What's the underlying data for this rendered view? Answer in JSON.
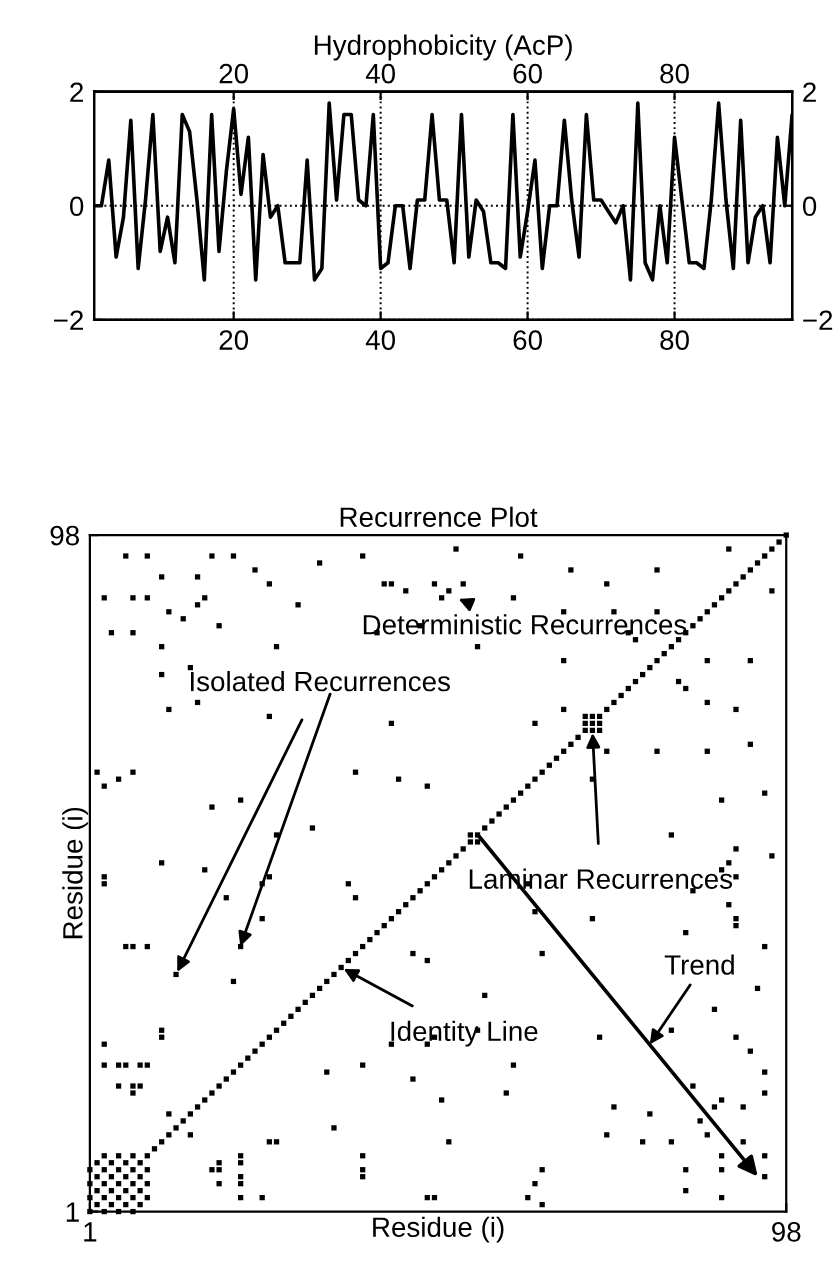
{
  "chart_data": [
    {
      "type": "line",
      "title": "Hydrophobicity (AcP)",
      "series": [
        {
          "color": "#000000",
          "x": [
            1,
            2,
            3,
            4,
            5,
            6,
            7,
            8,
            9,
            10,
            11,
            12,
            13,
            14,
            15,
            16,
            17,
            18,
            19,
            20,
            21,
            22,
            23,
            24,
            25,
            26,
            27,
            28,
            29,
            30,
            31,
            32,
            33,
            34,
            35,
            36,
            37,
            38,
            39,
            40,
            41,
            42,
            43,
            44,
            45,
            46,
            47,
            48,
            49,
            50,
            51,
            52,
            53,
            54,
            55,
            56,
            57,
            58,
            59,
            60,
            61,
            62,
            63,
            64,
            65,
            66,
            67,
            68,
            69,
            70,
            71,
            72,
            73,
            74,
            75,
            76,
            77,
            78,
            79,
            80,
            81,
            82,
            83,
            84,
            85,
            86,
            87,
            88,
            89,
            90,
            91,
            92,
            93,
            94,
            95,
            96
          ],
          "values": [
            0,
            0,
            0.8,
            -0.9,
            -0.2,
            1.5,
            -1.1,
            0.1,
            1.6,
            -0.8,
            -0.2,
            -1,
            1.6,
            1.3,
            0.1,
            -1.3,
            1.6,
            -0.8,
            0.6,
            1.7,
            0.2,
            1.2,
            -1.3,
            0.9,
            -0.2,
            0,
            -1,
            -1,
            -1,
            0.8,
            -1.3,
            -1.1,
            1.8,
            0.1,
            1.6,
            1.6,
            0.1,
            0,
            1.6,
            -1.1,
            -1,
            0,
            0,
            -1.1,
            0.1,
            0.1,
            1.6,
            0.1,
            0.1,
            -1,
            1.6,
            -0.9,
            0.1,
            -0.1,
            -1,
            -1,
            -1.1,
            1.6,
            -0.9,
            -0.1,
            0.8,
            -1.1,
            0,
            0,
            1.5,
            0.1,
            -0.9,
            1.6,
            0.1,
            0.1,
            -0.1,
            -0.3,
            0,
            -1.3,
            1.8,
            -1,
            -1.3,
            0,
            -1,
            1.2,
            0.1,
            -1,
            -1,
            -1.1,
            0.1,
            1.8,
            0.1,
            -1.1,
            1.5,
            -1,
            -0.2,
            0,
            -1,
            1.2,
            0,
            1.6
          ]
        }
      ],
      "xlim": [
        1,
        96
      ],
      "xticks": [
        20,
        40,
        60,
        80
      ],
      "x2lim": [
        1,
        96
      ],
      "x2ticks": [
        20,
        40,
        60,
        80
      ],
      "ylim": [
        -2,
        2
      ],
      "yticks": [
        {
          "value": -2,
          "label": "−2"
        },
        0,
        2
      ],
      "y2lim": [
        -2,
        2
      ],
      "y2ticks": [
        {
          "value": -2,
          "label": "−2"
        },
        0,
        2
      ],
      "grid": true
    },
    {
      "type": "scatter",
      "title": "Recurrence Plot",
      "xlabel": "Residue (i)",
      "ylabel": "Residue (i)",
      "marker": "square",
      "series": [
        {
          "color": "#000000",
          "x": [
            6,
            9,
            18,
            21,
            24,
            26,
            11,
            16,
            3,
            7,
            9,
            12,
            14,
            16,
            17,
            19,
            4,
            7,
            11,
            27,
            30,
            33,
            39,
            42,
            43,
            45,
            47,
            41,
            11,
            15,
            12,
            16,
            26,
            43,
            2,
            3,
            5,
            7,
            18,
            22,
            27,
            32,
            38,
            44,
            48,
            52,
            61,
            49,
            50,
            51,
            53,
            60,
            68,
            73,
            80,
            67,
            74,
            80,
            55,
            77,
            67,
            76,
            67,
            63,
            90,
            3,
            11,
            17,
            20,
            26,
            7,
            13,
            22,
            21,
            11,
            3,
            3,
            6,
            9,
            5,
            7,
            8,
            12,
            7,
            8,
            5,
            11,
            9,
            6,
            3,
            25,
            25,
            38,
            37,
            1,
            2,
            3,
            4,
            5,
            6,
            7,
            1,
            2,
            3,
            4,
            5,
            1,
            2,
            3,
            70,
            71,
            70,
            54,
            95,
            95,
            95,
            95,
            93,
            91,
            92,
            92,
            89,
            89,
            89,
            87,
            86,
            88,
            89,
            85,
            84,
            84,
            82,
            82,
            88,
            94,
            95,
            91,
            91,
            90,
            85,
            84,
            78,
            79,
            73,
            74,
            72,
            71,
            64,
            62,
            63,
            64,
            59,
            60,
            55,
            56,
            64,
            63,
            62,
            96,
            95,
            91,
            89,
            90,
            91,
            89,
            93,
            91,
            93,
            87,
            87,
            87,
            82,
            83,
            80,
            84,
            73,
            71,
            96,
            49,
            51,
            50,
            46,
            49,
            39,
            35,
            39,
            34,
            27,
            25,
            22,
            22,
            22,
            19,
            19,
            19,
            15,
            18,
            22,
            22,
            26,
            39,
            39,
            48,
            43,
            48,
            46,
            48,
            3,
            4,
            5,
            6,
            7,
            8,
            9,
            5,
            6,
            7,
            8,
            9,
            7,
            8,
            9,
            71,
            72,
            72,
            55
          ],
          "values": [
            95,
            95,
            95,
            95,
            93,
            91,
            92,
            92,
            89,
            89,
            89,
            87,
            86,
            88,
            89,
            85,
            84,
            84,
            82,
            82,
            88,
            94,
            95,
            91,
            91,
            90,
            85,
            84,
            78,
            79,
            73,
            74,
            72,
            71,
            64,
            62,
            63,
            64,
            59,
            60,
            55,
            56,
            64,
            63,
            62,
            96,
            95,
            91,
            89,
            90,
            91,
            89,
            93,
            91,
            93,
            87,
            87,
            87,
            82,
            83,
            80,
            84,
            73,
            71,
            96,
            49,
            51,
            50,
            46,
            49,
            39,
            35,
            39,
            34,
            27,
            25,
            22,
            22,
            22,
            19,
            19,
            19,
            15,
            18,
            22,
            22,
            26,
            39,
            39,
            48,
            43,
            48,
            46,
            48,
            3,
            4,
            5,
            6,
            7,
            8,
            9,
            5,
            6,
            7,
            8,
            9,
            7,
            8,
            9,
            71,
            72,
            72,
            55,
            6,
            9,
            18,
            21,
            24,
            26,
            11,
            16,
            3,
            7,
            9,
            12,
            14,
            16,
            17,
            19,
            4,
            7,
            11,
            27,
            30,
            33,
            39,
            42,
            43,
            45,
            47,
            41,
            11,
            15,
            12,
            16,
            26,
            43,
            2,
            3,
            5,
            7,
            18,
            22,
            27,
            32,
            38,
            44,
            48,
            52,
            61,
            49,
            50,
            51,
            53,
            60,
            68,
            73,
            80,
            67,
            74,
            80,
            55,
            77,
            67,
            76,
            67,
            63,
            90,
            3,
            11,
            17,
            20,
            26,
            7,
            13,
            22,
            21,
            11,
            3,
            3,
            6,
            9,
            5,
            7,
            8,
            12,
            7,
            8,
            5,
            11,
            9,
            6,
            3,
            25,
            25,
            38,
            37,
            1,
            2,
            3,
            4,
            5,
            6,
            7,
            1,
            2,
            3,
            4,
            5,
            1,
            2,
            3,
            70,
            71,
            70,
            54
          ]
        },
        {
          "color": "#000000",
          "x": [
            1,
            2,
            3,
            4,
            5,
            6,
            7,
            8,
            9,
            10,
            11,
            12,
            13,
            14,
            15,
            16,
            17,
            18,
            19,
            20,
            21,
            22,
            23,
            24,
            25,
            26,
            27,
            28,
            29,
            30,
            31,
            32,
            33,
            34,
            35,
            36,
            37,
            38,
            39,
            40,
            41,
            42,
            43,
            44,
            45,
            46,
            47,
            48,
            49,
            50,
            51,
            52,
            53,
            54,
            55,
            56,
            57,
            58,
            59,
            60,
            61,
            62,
            63,
            64,
            65,
            66,
            67,
            68,
            69,
            70,
            71,
            72,
            73,
            74,
            75,
            76,
            77,
            78,
            79,
            80,
            81,
            82,
            83,
            84,
            85,
            86,
            87,
            88,
            89,
            90,
            91,
            92,
            93,
            94,
            95,
            96,
            97,
            98
          ],
          "values": [
            1,
            2,
            3,
            4,
            5,
            6,
            7,
            8,
            9,
            10,
            11,
            12,
            13,
            14,
            15,
            16,
            17,
            18,
            19,
            20,
            21,
            22,
            23,
            24,
            25,
            26,
            27,
            28,
            29,
            30,
            31,
            32,
            33,
            34,
            35,
            36,
            37,
            38,
            39,
            40,
            41,
            42,
            43,
            44,
            45,
            46,
            47,
            48,
            49,
            50,
            51,
            52,
            53,
            54,
            55,
            56,
            57,
            58,
            59,
            60,
            61,
            62,
            63,
            64,
            65,
            66,
            67,
            68,
            69,
            70,
            71,
            72,
            73,
            74,
            75,
            76,
            77,
            78,
            79,
            80,
            81,
            82,
            83,
            84,
            85,
            86,
            87,
            88,
            89,
            90,
            91,
            92,
            93,
            94,
            95,
            96,
            97,
            98
          ]
        }
      ],
      "xlim": [
        1,
        98
      ],
      "xticks": [
        1,
        98
      ],
      "ylim": [
        1,
        98
      ],
      "yticks": [
        1,
        98
      ],
      "annotations": [
        {
          "text": "Deterministic Recurrences",
          "x": 52,
          "y": 89
        },
        {
          "text": "Isolated Recurrences",
          "x": 13,
          "y": 35
        },
        {
          "text": "Laminar Recurrences",
          "x": 71,
          "y": 70
        },
        "Trend",
        {
          "text": "Identity Line",
          "x": 36,
          "y": 36
        }
      ]
    }
  ]
}
